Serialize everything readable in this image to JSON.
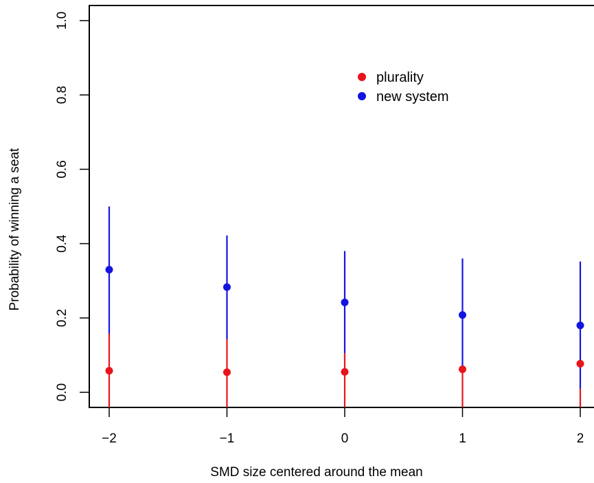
{
  "chart_data": {
    "type": "scatter",
    "title": "",
    "xlabel": "SMD size centered around the mean",
    "ylabel": "Probability of winning a seat",
    "xlim": [
      -2.2,
      2.2
    ],
    "ylim": [
      -0.04,
      1.04
    ],
    "x_ticks": [
      -2,
      -1,
      0,
      1,
      2
    ],
    "x_tick_labels": [
      "−2",
      "−1",
      "0",
      "1",
      "2"
    ],
    "y_ticks": [
      0.0,
      0.2,
      0.4,
      0.6,
      0.8,
      1.0
    ],
    "y_tick_labels": [
      "0.0",
      "0.2",
      "0.4",
      "0.6",
      "0.8",
      "1.0"
    ],
    "grid": false,
    "legend_position": "top-center",
    "series": [
      {
        "name": "plurality",
        "color": "#e8141b",
        "points": [
          {
            "x": -2,
            "y": 0.058,
            "low": -0.04,
            "high": 0.158
          },
          {
            "x": -1,
            "y": 0.054,
            "low": -0.04,
            "high": 0.142
          },
          {
            "x": 0,
            "y": 0.055,
            "low": -0.04,
            "high": 0.105
          },
          {
            "x": 1,
            "y": 0.062,
            "low": -0.04,
            "high": 0.065
          },
          {
            "x": 2,
            "y": 0.077,
            "low": -0.04,
            "high": 0.01
          }
        ]
      },
      {
        "name": "new system",
        "color": "#1414e0",
        "points": [
          {
            "x": -2,
            "y": 0.33,
            "low": 0.158,
            "high": 0.5
          },
          {
            "x": -1,
            "y": 0.283,
            "low": 0.142,
            "high": 0.422
          },
          {
            "x": 0,
            "y": 0.242,
            "low": 0.105,
            "high": 0.38
          },
          {
            "x": 1,
            "y": 0.208,
            "low": 0.065,
            "high": 0.36
          },
          {
            "x": 2,
            "y": 0.18,
            "low": 0.01,
            "high": 0.352
          }
        ]
      }
    ]
  }
}
